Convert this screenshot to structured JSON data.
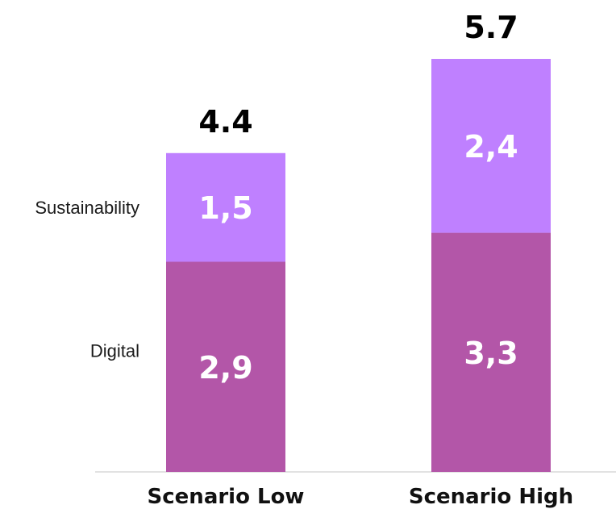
{
  "chart_data": {
    "type": "bar",
    "stacked": true,
    "categories": [
      "Scenario Low",
      "Scenario High"
    ],
    "series": [
      {
        "name": "Digital",
        "values": [
          2.9,
          3.3
        ],
        "labels": [
          "2,9",
          "3,3"
        ],
        "color": "#b356a8"
      },
      {
        "name": "Sustainability",
        "values": [
          1.5,
          2.4
        ],
        "labels": [
          "1,5",
          "2,4"
        ],
        "color": "#bf80ff"
      }
    ],
    "totals": [
      4.4,
      5.7
    ],
    "total_labels": [
      "4.4",
      "5.7"
    ],
    "title": "",
    "xlabel": "",
    "ylabel": "",
    "ylim": [
      0,
      5.7
    ],
    "grid": false,
    "legend": "left, inline beside first bar",
    "baseline_color": "#d9d9d9"
  }
}
